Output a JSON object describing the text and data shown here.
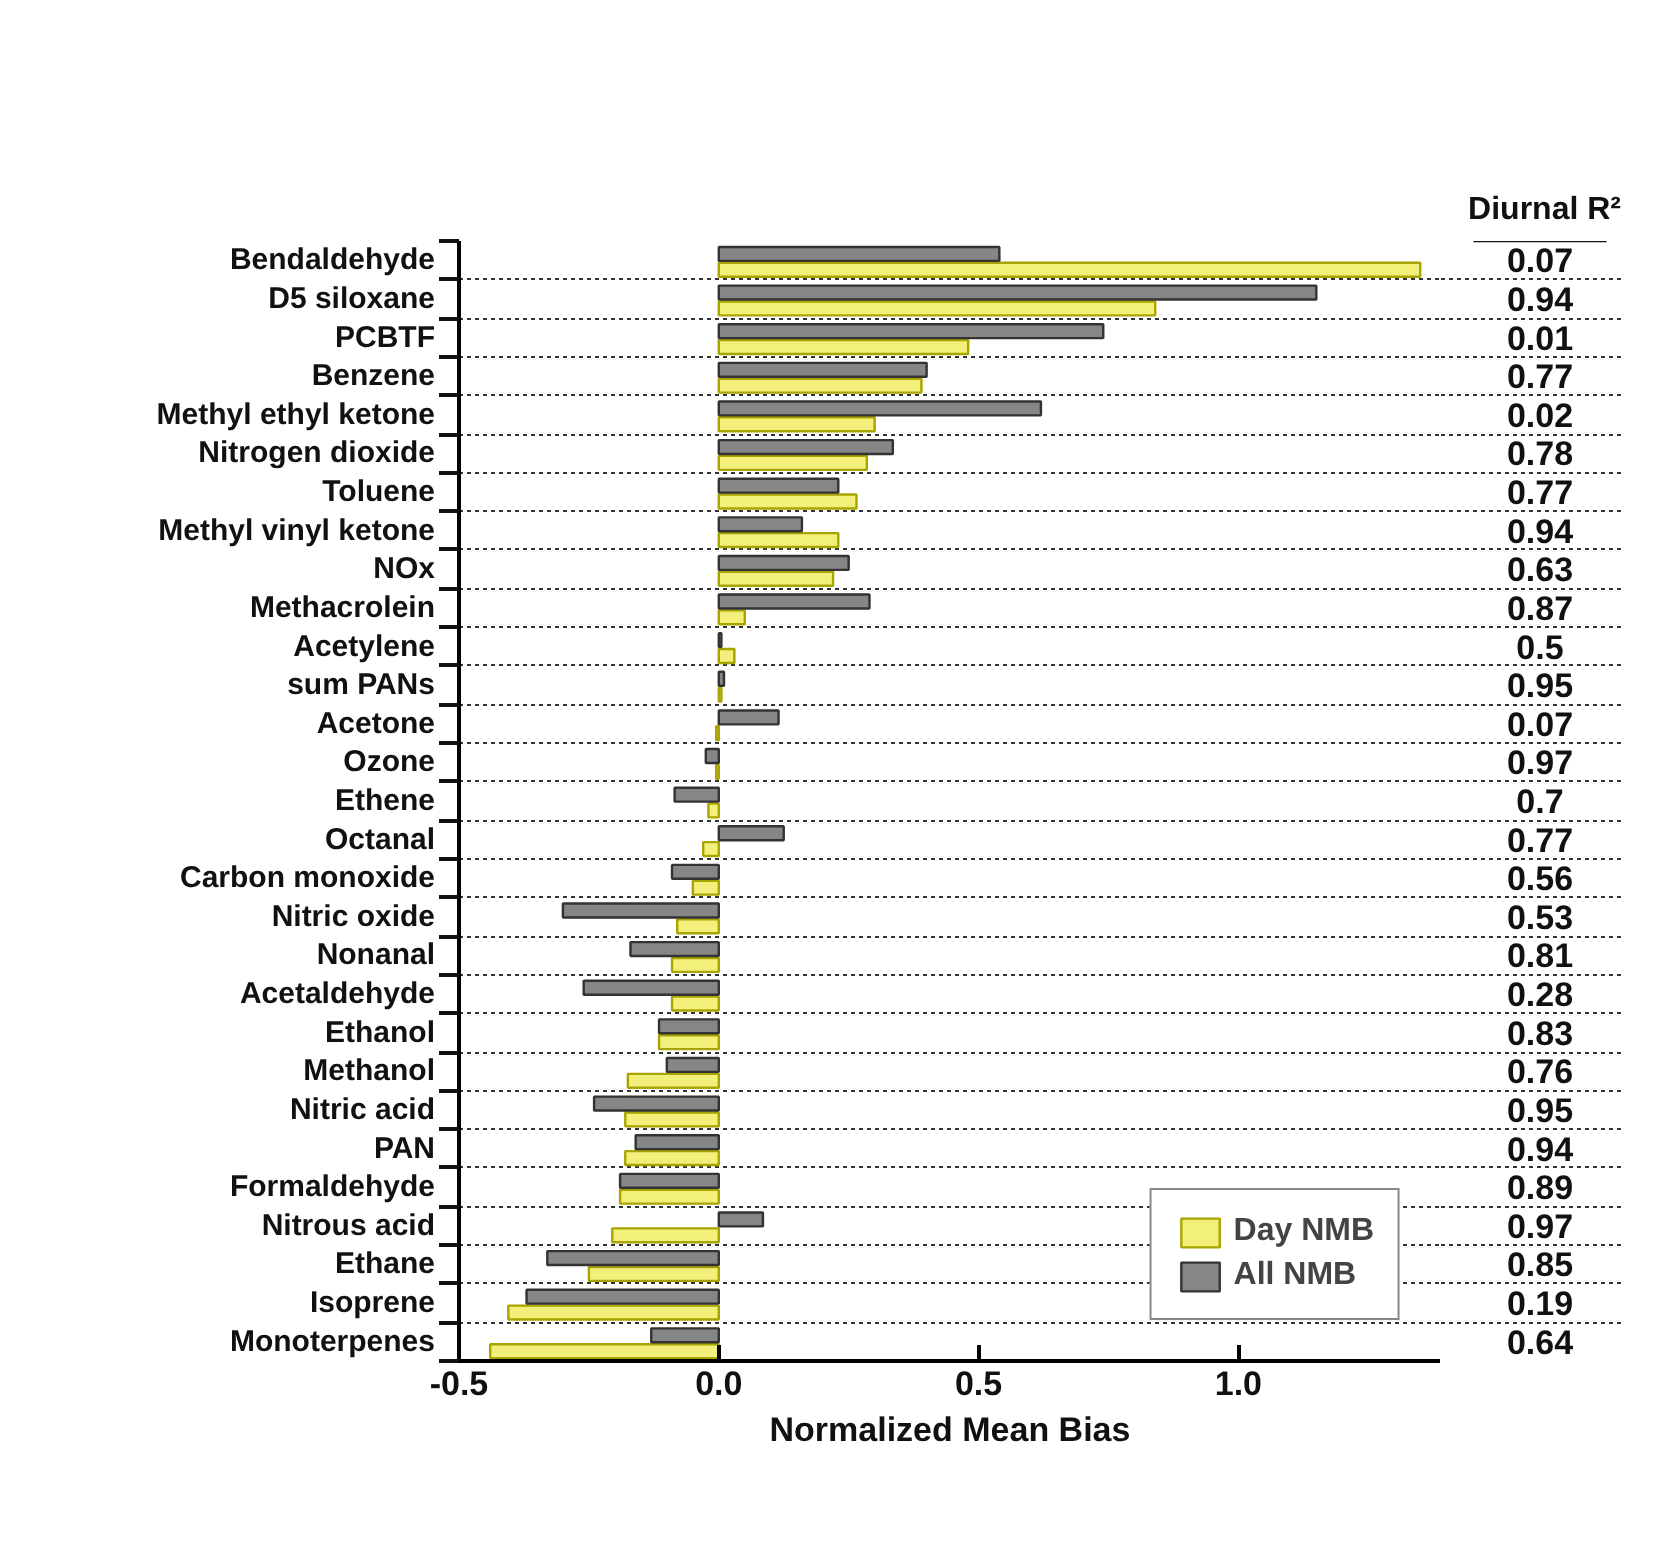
{
  "chart_data": {
    "type": "bar",
    "orientation": "horizontal",
    "xlabel": "Normalized Mean Bias",
    "categories": [
      "Bendaldehyde",
      "D5 siloxane",
      "PCBTF",
      "Benzene",
      "Methyl ethyl ketone",
      "Nitrogen dioxide",
      "Toluene",
      "Methyl vinyl ketone",
      "NOx",
      "Methacrolein",
      "Acetylene",
      "sum PANs",
      "Acetone",
      "Ozone",
      "Ethene",
      "Octanal",
      "Carbon monoxide",
      "Nitric oxide",
      "Nonanal",
      "Acetaldehyde",
      "Ethanol",
      "Methanol",
      "Nitric acid",
      "PAN",
      "Formaldehyde",
      "Nitrous acid",
      "Ethane",
      "Isoprene",
      "Monoterpenes"
    ],
    "series": [
      {
        "name": "Day NMB",
        "color": "#f2f07a",
        "values": [
          1.35,
          0.84,
          0.48,
          0.39,
          0.3,
          0.285,
          0.265,
          0.23,
          0.22,
          0.05,
          0.03,
          0.005,
          -0.005,
          -0.005,
          -0.02,
          -0.03,
          -0.05,
          -0.08,
          -0.09,
          -0.09,
          -0.115,
          -0.175,
          -0.18,
          -0.18,
          -0.19,
          -0.205,
          -0.25,
          -0.405,
          -0.44
        ]
      },
      {
        "name": "All NMB",
        "color": "#868686",
        "values": [
          0.54,
          1.15,
          0.74,
          0.4,
          0.62,
          0.335,
          0.23,
          0.16,
          0.25,
          0.29,
          0.005,
          0.01,
          0.115,
          -0.025,
          -0.085,
          0.125,
          -0.09,
          -0.3,
          -0.17,
          -0.26,
          -0.115,
          -0.1,
          -0.24,
          -0.16,
          -0.19,
          0.085,
          -0.33,
          -0.37,
          -0.13
        ]
      }
    ],
    "xlim": [
      -0.5,
      1.39
    ],
    "xticks": [
      {
        "value": -0.5,
        "label": "-0.5"
      },
      {
        "value": 0,
        "label": "0.0"
      },
      {
        "value": 0.5,
        "label": "0.5"
      },
      {
        "value": 1,
        "label": "1.0"
      }
    ],
    "grid": "y",
    "legend": "bottom right",
    "annotations": [
      "Diurnal R²",
      "0.07",
      "0.94",
      "0.01",
      "0.77",
      "0.02",
      "0.78",
      "0.77",
      "0.94",
      "0.63",
      "0.87",
      "0.5",
      "0.95",
      "0.07",
      "0.97",
      "0.7",
      "0.77",
      "0.56",
      "0.53",
      "0.81",
      "0.28",
      "0.83",
      "0.76",
      "0.95",
      "0.94",
      "0.89",
      "0.97",
      "0.85",
      "0.19",
      "0.64"
    ]
  }
}
